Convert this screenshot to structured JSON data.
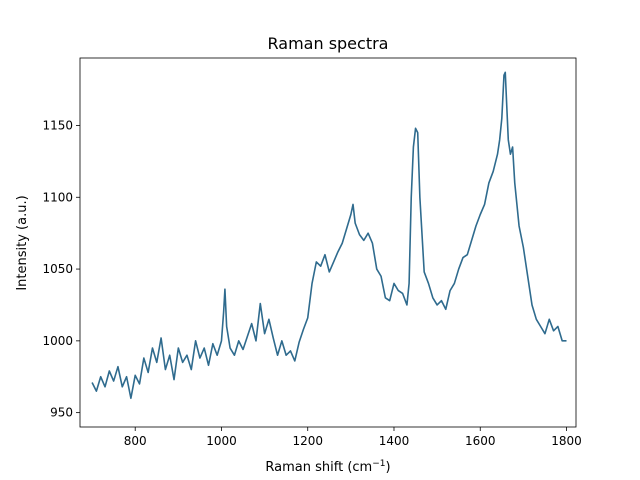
{
  "chart_data": {
    "type": "line",
    "title": "Raman spectra",
    "xlabel": "Raman shift (cm",
    "xlabel_sup": "−1",
    "xlabel_suffix": ")",
    "ylabel": "Intensity (a.u.)",
    "xlim": [
      672,
      1822
    ],
    "ylim": [
      940,
      1197
    ],
    "xticks": [
      800,
      1000,
      1200,
      1400,
      1600,
      1800
    ],
    "yticks": [
      950,
      1000,
      1050,
      1100,
      1150
    ],
    "grid": false,
    "legend": "none",
    "series": [
      {
        "color": "#2f6b8e",
        "x": [
          700,
          710,
          720,
          730,
          740,
          750,
          760,
          770,
          780,
          790,
          800,
          810,
          820,
          830,
          840,
          850,
          860,
          870,
          880,
          890,
          900,
          910,
          920,
          930,
          940,
          950,
          960,
          970,
          980,
          990,
          1000,
          1005,
          1008,
          1012,
          1020,
          1030,
          1040,
          1050,
          1060,
          1070,
          1080,
          1090,
          1100,
          1110,
          1120,
          1130,
          1140,
          1150,
          1160,
          1170,
          1180,
          1190,
          1200,
          1210,
          1220,
          1230,
          1240,
          1250,
          1260,
          1270,
          1280,
          1290,
          1300,
          1305,
          1310,
          1320,
          1330,
          1340,
          1350,
          1360,
          1370,
          1380,
          1390,
          1400,
          1410,
          1420,
          1430,
          1435,
          1440,
          1445,
          1450,
          1455,
          1460,
          1470,
          1480,
          1490,
          1500,
          1510,
          1520,
          1530,
          1540,
          1550,
          1560,
          1570,
          1580,
          1590,
          1600,
          1610,
          1620,
          1630,
          1640,
          1645,
          1650,
          1655,
          1658,
          1662,
          1665,
          1670,
          1675,
          1680,
          1685,
          1690,
          1700,
          1710,
          1720,
          1730,
          1740,
          1750,
          1760,
          1770,
          1780,
          1790,
          1800
        ],
        "y": [
          971,
          965,
          975,
          968,
          979,
          972,
          982,
          968,
          975,
          960,
          976,
          970,
          988,
          978,
          995,
          985,
          1002,
          980,
          990,
          973,
          995,
          985,
          990,
          980,
          1000,
          988,
          995,
          983,
          998,
          990,
          1000,
          1020,
          1036,
          1010,
          995,
          990,
          1000,
          994,
          1003,
          1012,
          1000,
          1026,
          1005,
          1015,
          1002,
          990,
          1000,
          990,
          993,
          986,
          999,
          1008,
          1016,
          1040,
          1055,
          1052,
          1060,
          1048,
          1055,
          1062,
          1068,
          1078,
          1088,
          1095,
          1082,
          1074,
          1070,
          1075,
          1068,
          1050,
          1045,
          1030,
          1028,
          1040,
          1035,
          1033,
          1025,
          1040,
          1100,
          1135,
          1148,
          1145,
          1100,
          1048,
          1040,
          1030,
          1025,
          1028,
          1022,
          1035,
          1040,
          1050,
          1058,
          1060,
          1070,
          1080,
          1088,
          1095,
          1110,
          1118,
          1130,
          1140,
          1155,
          1185,
          1187,
          1160,
          1140,
          1130,
          1135,
          1110,
          1095,
          1080,
          1065,
          1045,
          1025,
          1015,
          1010,
          1005,
          1015,
          1007,
          1010,
          1000,
          1000
        ]
      }
    ]
  }
}
